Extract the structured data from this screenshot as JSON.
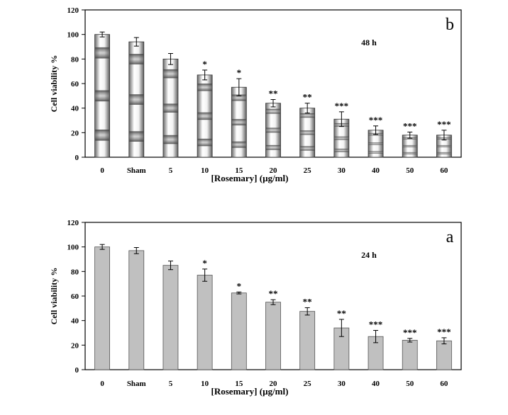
{
  "chart_data": [
    {
      "type": "bar",
      "panel": "b",
      "annotation": "48 h",
      "title": "",
      "xlabel": "[Rosemary]  (µg/ml)",
      "ylabel": "Cell viability %",
      "ylim": [
        0,
        120
      ],
      "yticks": [
        0,
        20,
        40,
        60,
        80,
        100,
        120
      ],
      "categories": [
        "0",
        "Sham",
        "5",
        "10",
        "15",
        "20",
        "25",
        "30",
        "40",
        "50",
        "60"
      ],
      "values": [
        100,
        94,
        80,
        67,
        57,
        44,
        40,
        31,
        22,
        18,
        18
      ],
      "errors": [
        2,
        3.5,
        4.5,
        4,
        7,
        3,
        4,
        6,
        3.5,
        2.5,
        4
      ],
      "significance": [
        "",
        "",
        "",
        "*",
        "*",
        "**",
        "**",
        "***",
        "***",
        "***",
        "***"
      ],
      "grid": false,
      "bar_fill": "#9a9a9a",
      "bar_style": "gradient-banded"
    },
    {
      "type": "bar",
      "panel": "a",
      "annotation": "24 h",
      "title": "",
      "xlabel": "[Rosemary]  (µg/ml)",
      "ylabel": "Cell viability %",
      "ylim": [
        0,
        120
      ],
      "yticks": [
        0,
        20,
        40,
        60,
        80,
        100,
        120
      ],
      "categories": [
        "0",
        "Sham",
        "5",
        "10",
        "15",
        "20",
        "25",
        "30",
        "40",
        "50",
        "60"
      ],
      "values": [
        100,
        97,
        85,
        77,
        62.5,
        55,
        47.5,
        34,
        27,
        24,
        23.5
      ],
      "errors": [
        2,
        2.5,
        3.5,
        5,
        0.8,
        2,
        3,
        7,
        5,
        1.5,
        2.5
      ],
      "significance": [
        "",
        "",
        "",
        "*",
        "*",
        "**",
        "**",
        "**",
        "***",
        "***",
        "***"
      ],
      "grid": false,
      "bar_fill": "#c0c0c0",
      "bar_style": "solid"
    }
  ]
}
